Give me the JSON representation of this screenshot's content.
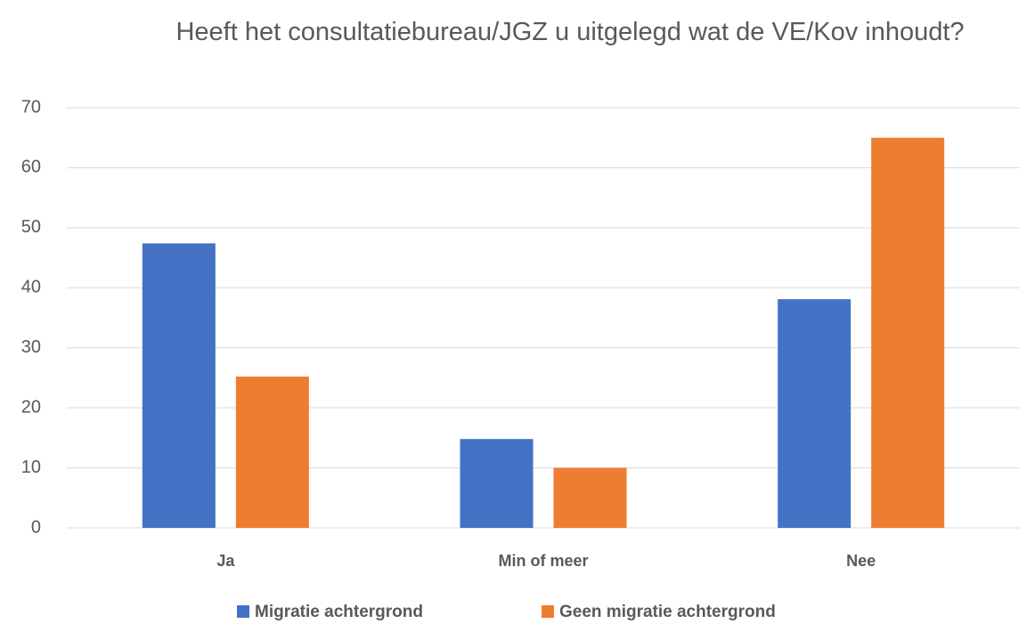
{
  "chart_data": {
    "type": "bar",
    "title": "Heeft het consultatiebureau/JGZ u uitgelegd wat de VE/Kov inhoudt?",
    "categories": [
      "Ja",
      "Min of meer",
      "Nee"
    ],
    "series": [
      {
        "name": "Migratie achtergrond",
        "color": "#4472c4",
        "values": [
          47.4,
          14.8,
          38.1
        ]
      },
      {
        "name": "Geen migratie achtergrond",
        "color": "#ed7d31",
        "values": [
          25.2,
          10,
          65
        ]
      }
    ],
    "ylim": [
      0,
      70
    ],
    "yticks": [
      0,
      10,
      20,
      30,
      40,
      50,
      60,
      70
    ],
    "grid": true,
    "legend": "bottom"
  }
}
